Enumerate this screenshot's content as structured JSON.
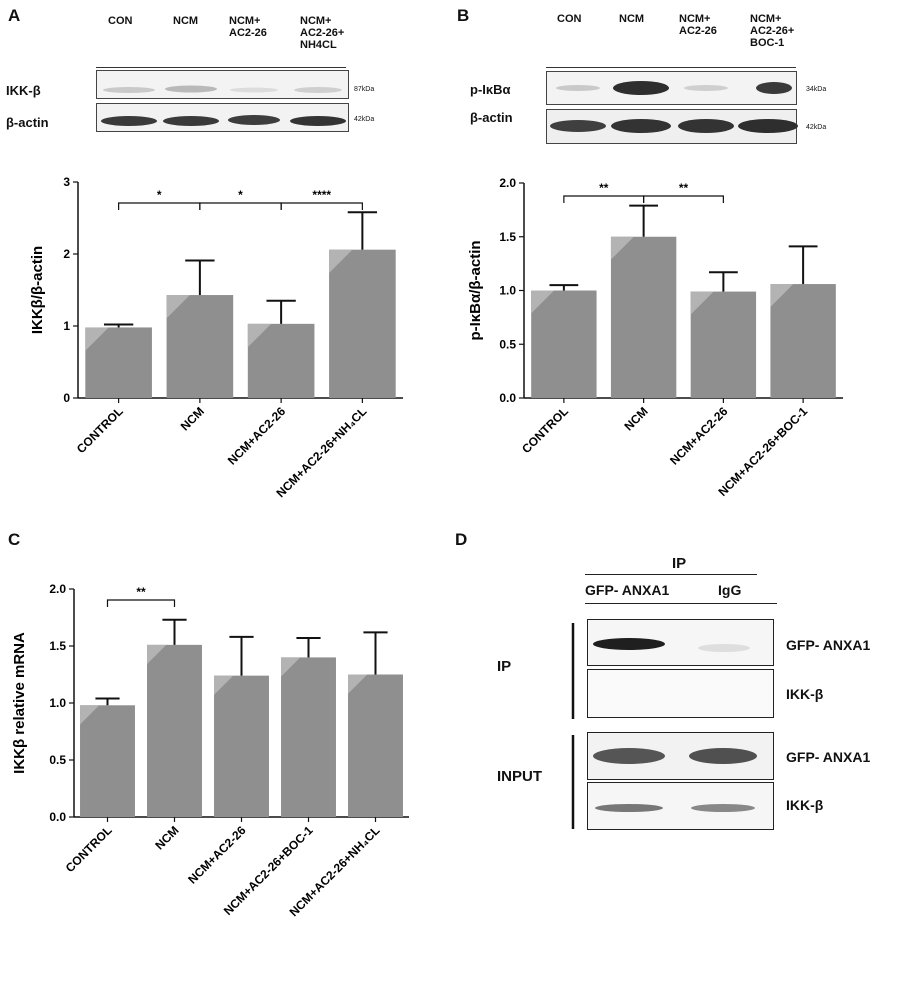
{
  "panels": {
    "A": {
      "letter": "A",
      "lanes": [
        "CON",
        "NCM",
        "NCM+\nAC2-26",
        "NCM+\nAC2-26+\nNH4CL"
      ],
      "bands": [
        {
          "label": "IKK-β",
          "kda": "87kDa"
        },
        {
          "label": "β-actin",
          "kda": "42kDa"
        }
      ]
    },
    "B": {
      "letter": "B",
      "lanes": [
        "CON",
        "NCM",
        "NCM+\nAC2-26",
        "NCM+\nAC2-26+\nBOC-1"
      ],
      "bands": [
        {
          "label": "p-IκBα",
          "kda": "34kDa"
        },
        {
          "label": "β-actin",
          "kda": "42kDa"
        }
      ]
    },
    "C": {
      "letter": "C"
    },
    "D": {
      "letter": "D",
      "ip_header": "IP",
      "columns": [
        "GFP- ANXA1",
        "IgG"
      ],
      "groups": [
        {
          "label": "IP",
          "rows": [
            "GFP- ANXA1",
            "IKK-β"
          ]
        },
        {
          "label": "INPUT",
          "rows": [
            "GFP- ANXA1",
            "IKK-β"
          ]
        }
      ]
    }
  },
  "chart_data": [
    {
      "id": "A",
      "type": "bar",
      "categories": [
        "CONTROL",
        "NCM",
        "NCM+AC2-26",
        "NCM+AC2-26+NH₄CL"
      ],
      "values": [
        0.98,
        1.43,
        1.03,
        2.06
      ],
      "errors": [
        0.04,
        0.48,
        0.32,
        0.52
      ],
      "ylabel": "IKKβ/β-actin",
      "ylim": [
        0,
        3
      ],
      "yticks": [
        "0",
        "1",
        "2",
        "3"
      ],
      "ytick_values": [
        0,
        1,
        2,
        3
      ],
      "significance": [
        {
          "from": 0,
          "to": 1,
          "label": "*"
        },
        {
          "from": 1,
          "to": 2,
          "label": "*"
        },
        {
          "from": 2,
          "to": 3,
          "label": "****"
        }
      ],
      "bar_color": "#8f8f8f"
    },
    {
      "id": "B",
      "type": "bar",
      "categories": [
        "CONTROL",
        "NCM",
        "NCM+AC2-26",
        "NCM+AC2-26+BOC-1"
      ],
      "values": [
        1.0,
        1.5,
        0.99,
        1.06
      ],
      "errors": [
        0.05,
        0.29,
        0.18,
        0.35
      ],
      "ylabel": "p-IκBα/β-actin",
      "ylim": [
        0,
        2
      ],
      "yticks": [
        "0.0",
        "0.5",
        "1.0",
        "1.5",
        "2.0"
      ],
      "ytick_values": [
        0,
        0.5,
        1,
        1.5,
        2
      ],
      "significance": [
        {
          "from": 0,
          "to": 1,
          "label": "**"
        },
        {
          "from": 1,
          "to": 2,
          "label": "**"
        }
      ],
      "bar_color": "#8f8f8f"
    },
    {
      "id": "C",
      "type": "bar",
      "categories": [
        "CONTROL",
        "NCM",
        "NCM+AC2-26",
        "NCM+AC2-26+BOC-1",
        "NCM+AC2-26+NH₄CL"
      ],
      "values": [
        0.98,
        1.51,
        1.24,
        1.4,
        1.25
      ],
      "errors": [
        0.06,
        0.22,
        0.34,
        0.17,
        0.37
      ],
      "ylabel": "IKKβ relative mRNA",
      "ylim": [
        0,
        2
      ],
      "yticks": [
        "0.0",
        "0.5",
        "1.0",
        "1.5",
        "2.0"
      ],
      "ytick_values": [
        0,
        0.5,
        1,
        1.5,
        2
      ],
      "significance": [
        {
          "from": 0,
          "to": 1,
          "label": "**"
        }
      ],
      "bar_color": "#8f8f8f"
    }
  ]
}
